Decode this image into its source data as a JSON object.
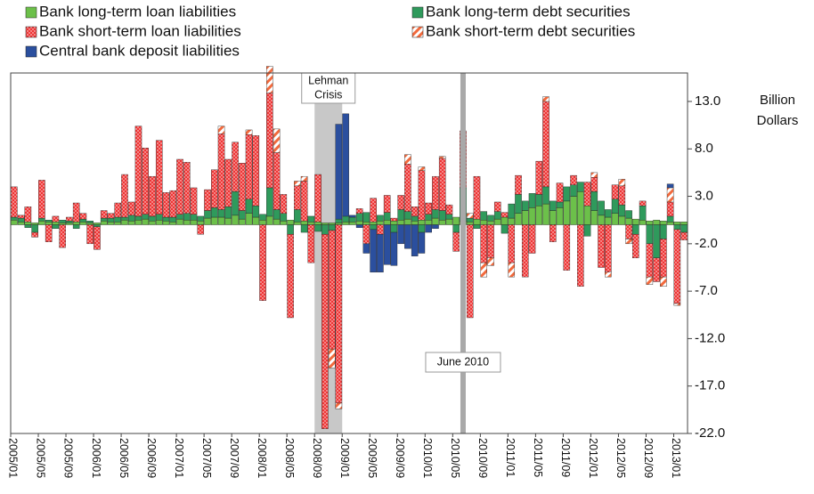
{
  "chart_data": {
    "type": "stacked_bar",
    "y_label": [
      "Billion",
      "Dollars"
    ],
    "categories": [
      "2005/01",
      null,
      null,
      null,
      "2005/05",
      null,
      null,
      null,
      "2005/09",
      null,
      null,
      null,
      "2006/01",
      null,
      null,
      null,
      "2006/05",
      null,
      null,
      null,
      "2006/09",
      null,
      null,
      null,
      "2007/01",
      null,
      null,
      null,
      "2007/05",
      null,
      null,
      null,
      "2007/09",
      null,
      null,
      null,
      "2008/01",
      null,
      null,
      null,
      "2008/05",
      null,
      null,
      null,
      "2008/09",
      null,
      null,
      null,
      "2009/01",
      null,
      null,
      null,
      "2009/05",
      null,
      null,
      null,
      "2009/09",
      null,
      null,
      null,
      "2010/01",
      null,
      null,
      null,
      "2010/05",
      null,
      null,
      null,
      "2010/09",
      null,
      null,
      null,
      "2011/01",
      null,
      null,
      null,
      "2011/05",
      null,
      null,
      null,
      "2011/09",
      null,
      null,
      null,
      "2012/01",
      null,
      null,
      null,
      "2012/05",
      null,
      null,
      null,
      "2012/09",
      null,
      null,
      null,
      "2013/01",
      null
    ],
    "series": [
      {
        "name": "Bank long-term loan liabilities",
        "color": "#6cc04a",
        "pattern": "solid",
        "values": [
          0.5,
          0.3,
          0.3,
          0.2,
          0.4,
          0.3,
          0.3,
          0.2,
          0.2,
          0.3,
          0.3,
          0.2,
          0.2,
          0.4,
          0.3,
          0.3,
          0.5,
          0.4,
          0.5,
          0.6,
          0.4,
          0.5,
          0.4,
          0.3,
          0.6,
          0.5,
          0.5,
          0.4,
          0.7,
          0.8,
          0.8,
          0.7,
          1.0,
          0.6,
          1.2,
          0.8,
          0.5,
          0.9,
          0.6,
          0.4,
          0.5,
          0.3,
          0.4,
          0.3,
          0.3,
          0.2,
          0.2,
          0.2,
          0.3,
          0.3,
          0.4,
          0.3,
          0.3,
          0.4,
          0.5,
          0.4,
          0.5,
          0.6,
          0.4,
          0.5,
          0.5,
          0.7,
          0.5,
          0.6,
          0.8,
          0.4,
          0.3,
          0.6,
          0.5,
          0.4,
          0.6,
          0.8,
          0.7,
          1.2,
          1.5,
          1.8,
          2.0,
          2.2,
          1.5,
          1.8,
          2.5,
          3.0,
          3.5,
          2.0,
          1.5,
          1.0,
          0.8,
          1.2,
          0.9,
          0.7,
          0.6,
          0.5,
          0.4,
          0.5,
          0.4,
          0.3,
          0.3,
          0.3
        ]
      },
      {
        "name": "Bank long-term debt securities",
        "color": "#2f9a5c",
        "pattern": "solid",
        "values": [
          0.3,
          0.4,
          -0.3,
          -0.8,
          0.3,
          0.2,
          -0.4,
          0.3,
          0.2,
          -0.4,
          0.3,
          0.2,
          -0.2,
          0.3,
          0.4,
          0.5,
          0.3,
          0.6,
          0.4,
          0.5,
          0.5,
          0.6,
          0.4,
          0.5,
          0.5,
          0.7,
          0.6,
          0.5,
          0.8,
          1.0,
          0.8,
          1.2,
          2.5,
          0.9,
          1.5,
          1.2,
          0.6,
          3.0,
          1.0,
          0.8,
          -1.0,
          1.3,
          -0.8,
          0.6,
          -0.7,
          -1.0,
          -0.6,
          0.4,
          0.6,
          0.5,
          0.8,
          1.0,
          -0.5,
          0.6,
          0.8,
          -0.8,
          1.1,
          0.8,
          0.5,
          -0.8,
          0.6,
          0.9,
          1.0,
          0.5,
          -0.8,
          3.5,
          0.4,
          -0.4,
          0.9,
          0.6,
          0.8,
          -0.9,
          1.5,
          2.0,
          1.0,
          1.5,
          1.2,
          1.8,
          1.0,
          0.6,
          1.5,
          1.2,
          1.0,
          -1.2,
          2.0,
          1.5,
          0.8,
          1.5,
          1.2,
          0.8,
          -1.0,
          1.5,
          -2.0,
          -3.5,
          -1.5,
          0.6,
          -0.5,
          -0.8
        ]
      },
      {
        "name": "Bank short-term loan liabilities",
        "color": "#ee3535",
        "pattern": "dots",
        "values": [
          3.2,
          0.3,
          1.6,
          -0.5,
          4.0,
          -1.8,
          0.6,
          -2.4,
          0.4,
          2.0,
          0.6,
          -2.0,
          -2.4,
          0.8,
          0.5,
          1.5,
          4.5,
          1.4,
          9.5,
          7.0,
          4.2,
          7.8,
          2.6,
          2.8,
          5.8,
          5.4,
          2.8,
          -1.0,
          2.2,
          4.0,
          8.0,
          5.0,
          5.2,
          5.0,
          6.8,
          7.4,
          -8.0,
          10.0,
          6.0,
          2.0,
          -8.8,
          2.5,
          4.2,
          -4.0,
          5.0,
          -20.5,
          -12.5,
          -18.8,
          0.0,
          0.0,
          0.5,
          -2.0,
          2.5,
          -1.0,
          1.8,
          0.3,
          1.5,
          5.0,
          1.0,
          5.2,
          1.2,
          3.5,
          5.5,
          1.0,
          -2.0,
          6.0,
          -9.8,
          4.5,
          -4.0,
          -3.5,
          1.0,
          0.5,
          -4.0,
          2.0,
          -5.5,
          -3.0,
          3.5,
          9.0,
          -1.8,
          2.0,
          -4.8,
          1.0,
          -6.5,
          2.5,
          1.5,
          -4.5,
          -5.0,
          1.5,
          2.0,
          -1.5,
          -2.5,
          0.5,
          -3.5,
          -2.5,
          -4.0,
          1.5,
          -7.8,
          -0.8
        ]
      },
      {
        "name": "Bank short-term debt securities",
        "color": "#f26a3d",
        "pattern": "stripes",
        "values": [
          0,
          0,
          0,
          0,
          0,
          0,
          0,
          0,
          0,
          0,
          0,
          0,
          0,
          0,
          0,
          0,
          0,
          0,
          0,
          0,
          0,
          0,
          0,
          0,
          0,
          0,
          0,
          0,
          0,
          0,
          0.8,
          0,
          0,
          0,
          0.5,
          0,
          0,
          2.8,
          2.5,
          0,
          0,
          0.5,
          0.5,
          0,
          0,
          0,
          -2.0,
          -0.6,
          0,
          0,
          0,
          0,
          0,
          0,
          0,
          0,
          0,
          1.0,
          0,
          0.4,
          0,
          0,
          0.2,
          0,
          0,
          0,
          0.5,
          0,
          -1.5,
          -0.8,
          0,
          0,
          -1.5,
          0,
          0,
          0,
          0,
          0.5,
          0,
          0,
          0,
          0,
          0,
          0,
          0.5,
          0,
          -0.5,
          0,
          0.7,
          -0.5,
          0,
          0,
          -0.8,
          0,
          -1.0,
          1.5,
          -0.2,
          0
        ]
      },
      {
        "name": "Central bank deposit liabilities",
        "color": "#2b4f9e",
        "pattern": "solid",
        "values": [
          0,
          0,
          0,
          0,
          0,
          0,
          0,
          0,
          0,
          0,
          0,
          0,
          0,
          0,
          0,
          0,
          0,
          0,
          0,
          0,
          0,
          0,
          0,
          0,
          0,
          0,
          0,
          0,
          0,
          0,
          0,
          0,
          0,
          0,
          0,
          0,
          0,
          0,
          0,
          0,
          0,
          0,
          0,
          0,
          0,
          0,
          0,
          10.0,
          10.8,
          0.2,
          -0.3,
          -1.0,
          -4.5,
          -4.0,
          -4.2,
          -3.5,
          -2.0,
          -2.5,
          -3.3,
          -2.2,
          -0.8,
          -0.4,
          0,
          0,
          0,
          0,
          0,
          0,
          0,
          0,
          0,
          0,
          0,
          0,
          0,
          0,
          0,
          0,
          0,
          0,
          0,
          0,
          0,
          0,
          0,
          0,
          0,
          0,
          0,
          0,
          0,
          0,
          0,
          0,
          0,
          0.4,
          0,
          0
        ]
      }
    ],
    "ylim": [
      -22,
      16
    ],
    "yticks": [
      {
        "value": 13,
        "label": "13.0"
      },
      {
        "value": 8,
        "label": "8.0"
      },
      {
        "value": 3,
        "label": "3.0"
      },
      {
        "value": -2,
        "label": "-2.0"
      },
      {
        "value": -7,
        "label": "-7.0"
      },
      {
        "value": -12,
        "label": "-12.0"
      },
      {
        "value": -17,
        "label": "-17.0"
      },
      {
        "value": -22,
        "label": "-22.0"
      }
    ],
    "y_axis_side": "right",
    "grid": false,
    "annotations": [
      {
        "label": [
          "Lehman",
          "Crisis"
        ],
        "start": "2008/09",
        "end": "2009/01"
      },
      {
        "label": [
          "June 2010"
        ]
      }
    ]
  }
}
